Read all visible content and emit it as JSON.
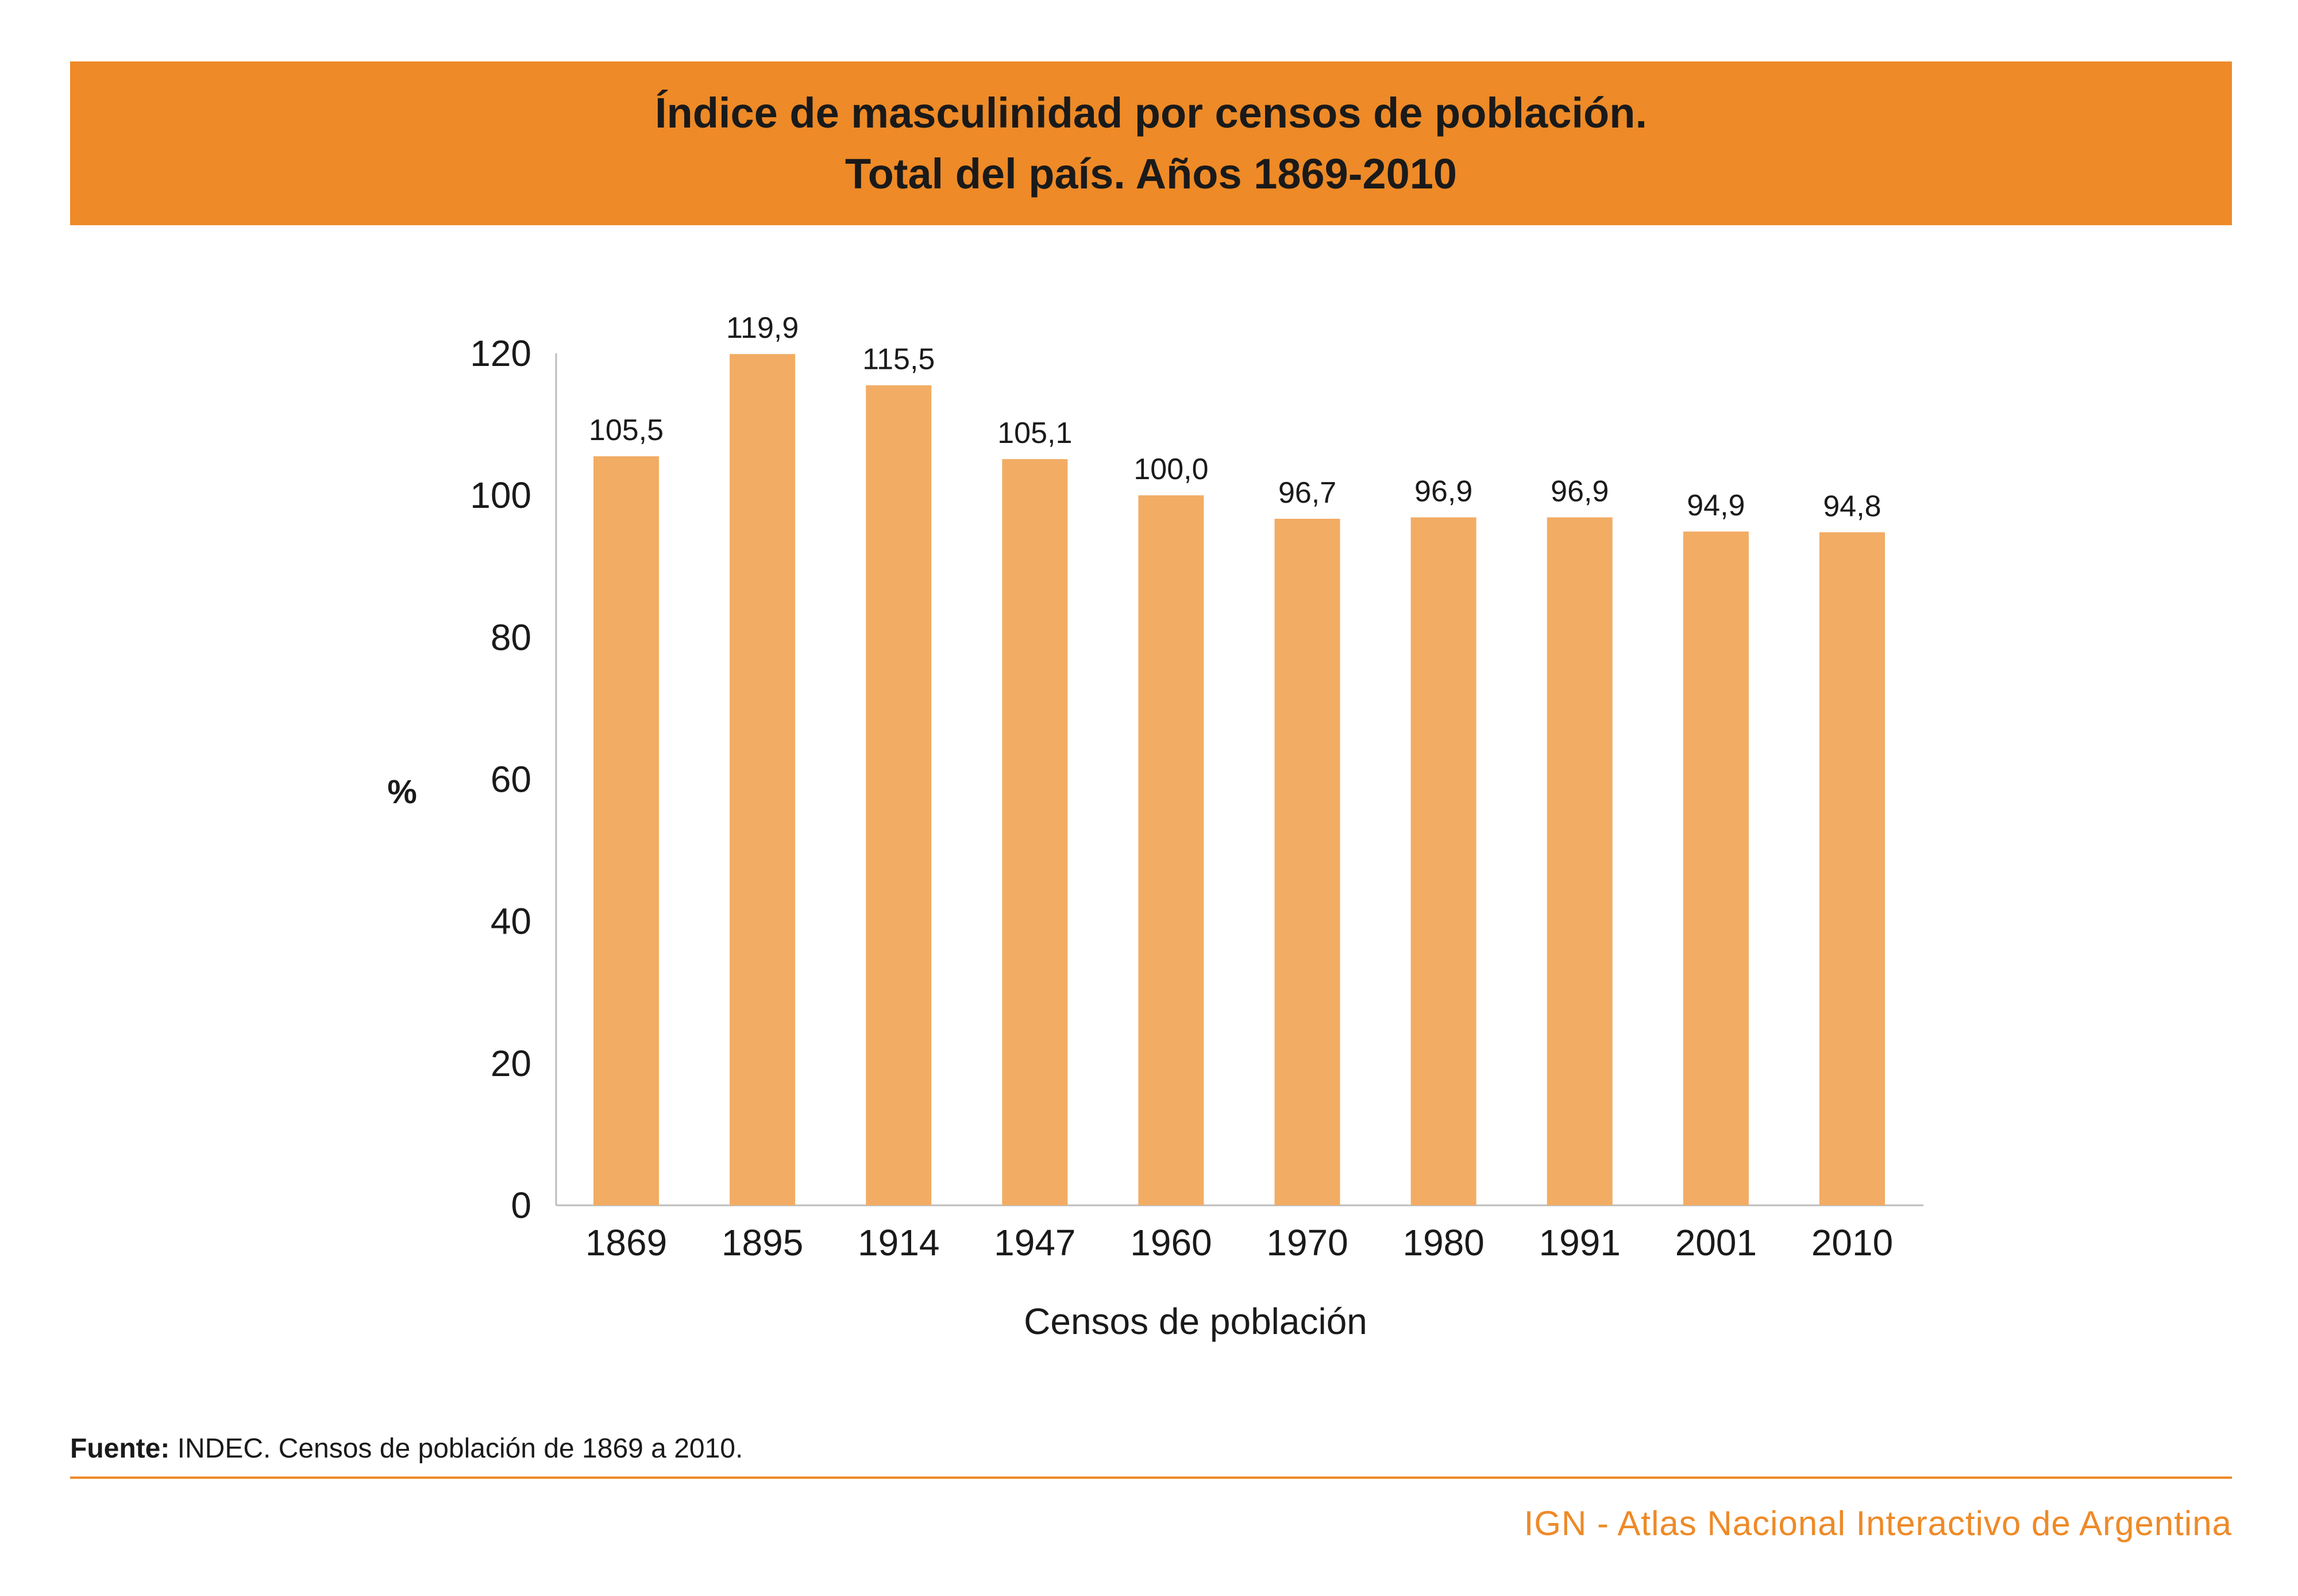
{
  "header": {
    "title_line1": "Índice de masculinidad por censos de población.",
    "title_line2": "Total del país. Años 1869-2010",
    "band_color": "#ee8a27"
  },
  "chart_data": {
    "type": "bar",
    "title": "Índice de masculinidad por censos de población. Total del país. Años 1869-2010",
    "xlabel": "Censos de población",
    "ylabel": "%",
    "categories": [
      "1869",
      "1895",
      "1914",
      "1947",
      "1960",
      "1970",
      "1980",
      "1991",
      "2001",
      "2010"
    ],
    "values": [
      105.5,
      119.9,
      115.5,
      105.1,
      100.0,
      96.7,
      96.9,
      96.9,
      94.9,
      94.8
    ],
    "value_labels": [
      "105,5",
      "119,9",
      "115,5",
      "105,1",
      "100,0",
      "96,7",
      "96,9",
      "96,9",
      "94,9",
      "94,8"
    ],
    "yticks": [
      0,
      20,
      40,
      60,
      80,
      100,
      120
    ],
    "ylim": [
      0,
      120
    ],
    "grid": false,
    "legend": "none",
    "bar_color": "#f2ac64",
    "axis_color": "#bdbdbd"
  },
  "footer": {
    "source_label": "Fuente:",
    "source_text": " INDEC. Censos de población de 1869 a 2010.",
    "brand": "IGN - Atlas Nacional Interactivo de Argentina",
    "accent_color": "#ee8a27"
  }
}
